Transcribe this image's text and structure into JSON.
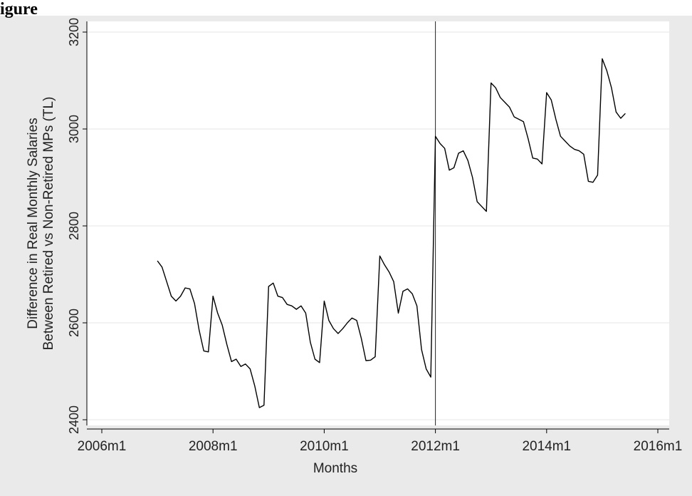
{
  "figure_label": "igure",
  "chart_data": {
    "type": "line",
    "title": "",
    "xlabel": "Months",
    "ylabel": [
      "Difference in Real Monthly Salaries",
      "Between Retired vs Non-Retired MPs (TL)"
    ],
    "x_ticks": [
      "2006m1",
      "2008m1",
      "2010m1",
      "2012m1",
      "2014m1",
      "2016m1"
    ],
    "x_tick_years": [
      2006,
      2008,
      2010,
      2012,
      2014,
      2016
    ],
    "y_ticks": [
      2400,
      2600,
      2800,
      3000,
      3200
    ],
    "xlim": [
      2006,
      2016
    ],
    "ylim": [
      2400,
      3200
    ],
    "grid": "horizontal",
    "vertical_line_at": "2012m1",
    "colors": {
      "line": "#000000",
      "grid": "#e6e6e6",
      "plot_bg": "#ffffff",
      "outer_bg": "#eaeaea",
      "axis_text": "#222222"
    },
    "series": [
      {
        "x": [
          "2007m1",
          "2007m2",
          "2007m3",
          "2007m4",
          "2007m5",
          "2007m6",
          "2007m7",
          "2007m8",
          "2007m9",
          "2007m10",
          "2007m11",
          "2007m12",
          "2008m1",
          "2008m2",
          "2008m3",
          "2008m4",
          "2008m5",
          "2008m6",
          "2008m7",
          "2008m8",
          "2008m9",
          "2008m10",
          "2008m11",
          "2008m12",
          "2009m1",
          "2009m2",
          "2009m3",
          "2009m4",
          "2009m5",
          "2009m6",
          "2009m7",
          "2009m8",
          "2009m9",
          "2009m10",
          "2009m11",
          "2009m12",
          "2010m1",
          "2010m2",
          "2010m3",
          "2010m4",
          "2010m5",
          "2010m6",
          "2010m7",
          "2010m8",
          "2010m9",
          "2010m10",
          "2010m11",
          "2010m12",
          "2011m1",
          "2011m2",
          "2011m3",
          "2011m4",
          "2011m5",
          "2011m6",
          "2011m7",
          "2011m8",
          "2011m9",
          "2011m10",
          "2011m11",
          "2011m12",
          "2012m1",
          "2012m2",
          "2012m3",
          "2012m4",
          "2012m5",
          "2012m6",
          "2012m7",
          "2012m8",
          "2012m9",
          "2012m10",
          "2012m11",
          "2012m12",
          "2013m1",
          "2013m2",
          "2013m3",
          "2013m4",
          "2013m5",
          "2013m6",
          "2013m7",
          "2013m8",
          "2013m9",
          "2013m10",
          "2013m11",
          "2013m12",
          "2014m1",
          "2014m2",
          "2014m3",
          "2014m4",
          "2014m5",
          "2014m6",
          "2014m7",
          "2014m8",
          "2014m9",
          "2014m10",
          "2014m11",
          "2014m12",
          "2015m1",
          "2015m2",
          "2015m3",
          "2015m4",
          "2015m5",
          "2015m6"
        ],
        "y": [
          2728,
          2715,
          2685,
          2655,
          2645,
          2655,
          2672,
          2670,
          2640,
          2585,
          2542,
          2540,
          2655,
          2620,
          2595,
          2555,
          2520,
          2525,
          2510,
          2515,
          2505,
          2470,
          2425,
          2430,
          2675,
          2682,
          2655,
          2652,
          2638,
          2635,
          2628,
          2635,
          2620,
          2560,
          2525,
          2518,
          2645,
          2605,
          2588,
          2578,
          2588,
          2600,
          2610,
          2605,
          2568,
          2522,
          2523,
          2530,
          2738,
          2720,
          2705,
          2685,
          2620,
          2665,
          2670,
          2660,
          2635,
          2545,
          2505,
          2488,
          2985,
          2970,
          2960,
          2915,
          2920,
          2950,
          2955,
          2935,
          2900,
          2850,
          2840,
          2830,
          3095,
          3085,
          3065,
          3055,
          3045,
          3025,
          3020,
          3015,
          2980,
          2940,
          2938,
          2928,
          3075,
          3060,
          3020,
          2985,
          2975,
          2965,
          2958,
          2955,
          2948,
          2892,
          2890,
          2905,
          3145,
          3120,
          3085,
          3035,
          3022,
          3032
        ]
      }
    ]
  }
}
